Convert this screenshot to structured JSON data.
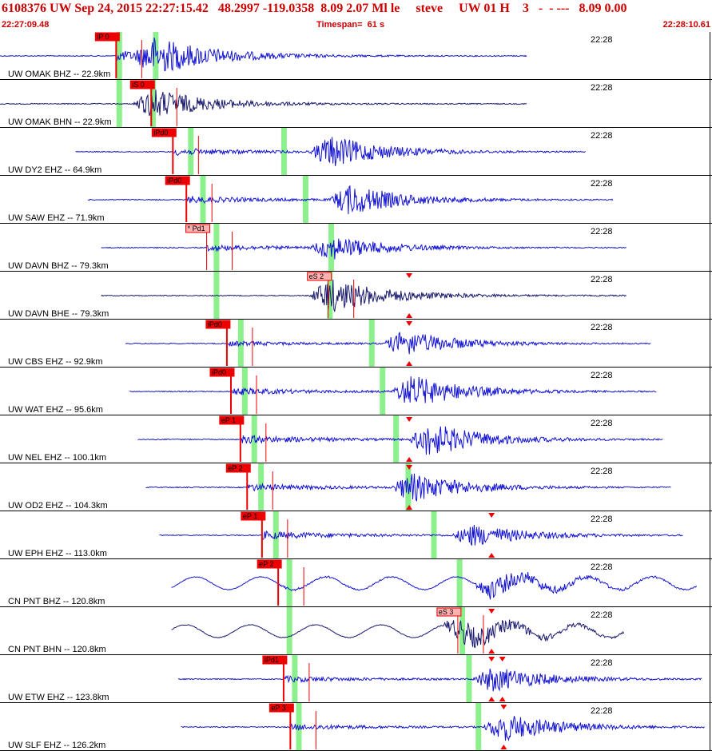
{
  "header": {
    "title": "6108376 UW Sep 24, 2015 22:27:15.42   48.2997 -119.0358  8.09 2.07 Ml le     steve     UW 01 H    3   -  - ---   8.09 0.00",
    "start_time": "22:27:09.48",
    "timespan": "Timespan=  61 s",
    "end_time": "22:28:10.61"
  },
  "colors": {
    "trace_vertical": "#1414d2",
    "trace_horizontal": "#1a1a6e",
    "pick_fill": "#ee0000",
    "pick_light": "#ffb0b0",
    "theo_bar": "#8cf08c",
    "separator": "#000000",
    "marker": "#ee0000"
  },
  "chart_data": {
    "type": "seismogram",
    "time_start": "22:27:09.48",
    "time_end": "22:28:10.61",
    "timespan_s": 61,
    "minute_mark_label": "22:28",
    "channels": [
      {
        "label": "UW OMAK BHZ -- 22.9km",
        "component": "Z",
        "pick": "iP 0",
        "pick_style": "solid",
        "t_pick": 8.6,
        "t_theo_p": 8.8,
        "t_theo_s": 11.5,
        "t_start": 0.0,
        "t_end": 39.0,
        "t_s_arr": 11.5,
        "amp_p": 0.45,
        "amp_s": 1.0,
        "markers": []
      },
      {
        "label": "UW OMAK BHN -- 22.9km",
        "component": "N",
        "pick": "iS 0",
        "pick_style": "solid",
        "t_pick": 11.2,
        "t_theo_p": 8.8,
        "t_theo_s": 11.3,
        "t_start": 0.0,
        "t_end": 39.0,
        "t_s_arr": 11.3,
        "amp_p": 0.1,
        "amp_s": 0.85,
        "markers": []
      },
      {
        "label": "UW DY2 EHZ -- 64.9km",
        "component": "Z",
        "pick": "iPd0",
        "pick_style": "solid",
        "t_pick": 12.8,
        "t_theo_p": 14.1,
        "t_theo_s": 21.0,
        "t_start": 5.6,
        "t_end": 43.4,
        "t_s_arr": 24.5,
        "amp_p": 0.3,
        "amp_s": 0.95,
        "markers": []
      },
      {
        "label": "UW SAW EHZ -- 71.9km",
        "component": "Z",
        "pick": "iPd0",
        "pick_style": "solid",
        "t_pick": 13.8,
        "t_theo_p": 15.0,
        "t_theo_s": 22.6,
        "t_start": 6.5,
        "t_end": 45.4,
        "t_s_arr": 25.9,
        "amp_p": 0.3,
        "amp_s": 0.9,
        "markers": []
      },
      {
        "label": "UW DAVN BHZ -- 79.3km",
        "component": "Z",
        "pick": "* Pd1",
        "pick_style": "light",
        "t_pick": 15.3,
        "t_theo_p": 16.0,
        "t_theo_s": 24.5,
        "t_start": 7.5,
        "t_end": 46.4,
        "t_s_arr": 24.5,
        "amp_p": 0.25,
        "amp_s": 0.7,
        "markers": []
      },
      {
        "label": "UW DAVN BHE -- 79.3km",
        "component": "E",
        "pick": "eS 2",
        "pick_style": "light",
        "t_pick": 24.3,
        "t_theo_p": 16.0,
        "t_theo_s": 24.4,
        "t_start": 7.5,
        "t_end": 46.4,
        "t_s_arr": 24.4,
        "amp_p": 0.15,
        "amp_s": 0.95,
        "markers": [
          30.3
        ]
      },
      {
        "label": "UW CBS EHZ -- 92.9km",
        "component": "Z",
        "pick": "iPd0",
        "pick_style": "solid",
        "t_pick": 16.8,
        "t_theo_p": 17.8,
        "t_theo_s": 27.5,
        "t_start": 9.3,
        "t_end": 48.2,
        "t_s_arr": 29.9,
        "amp_p": 0.2,
        "amp_s": 0.75,
        "markers": [
          30.3
        ]
      },
      {
        "label": "UW WAT EHZ -- 95.6km",
        "component": "Z",
        "pick": "iPd0",
        "pick_style": "solid",
        "t_pick": 17.1,
        "t_theo_p": 18.1,
        "t_theo_s": 28.3,
        "t_start": 9.6,
        "t_end": 48.6,
        "t_s_arr": 30.5,
        "amp_p": 0.3,
        "amp_s": 0.95,
        "markers": []
      },
      {
        "label": "UW NEL EHZ -- 100.1km",
        "component": "Z",
        "pick": "eP 1",
        "pick_style": "solid",
        "t_pick": 17.8,
        "t_theo_p": 18.8,
        "t_theo_s": 29.3,
        "t_start": 10.2,
        "t_end": 49.1,
        "t_s_arr": 31.8,
        "amp_p": 0.35,
        "amp_s": 1.0,
        "markers": [
          30.3
        ]
      },
      {
        "label": "UW OD2 EHZ -- 104.3km",
        "component": "Z",
        "pick": "eP 2",
        "pick_style": "solid",
        "t_pick": 18.3,
        "t_theo_p": 19.3,
        "t_theo_s": 30.2,
        "t_start": 10.8,
        "t_end": 49.7,
        "t_s_arr": 30.5,
        "amp_p": 0.3,
        "amp_s": 0.85,
        "markers": [
          30.3
        ]
      },
      {
        "label": "UW EPH EHZ -- 113.0km",
        "component": "Z",
        "pick": "eP 1",
        "pick_style": "solid",
        "t_pick": 19.4,
        "t_theo_p": 20.4,
        "t_theo_s": 32.1,
        "t_start": 11.8,
        "t_end": 50.6,
        "t_s_arr": 35.0,
        "amp_p": 0.35,
        "amp_s": 0.65,
        "markers": [
          36.4
        ]
      },
      {
        "label": "CN PNT BHZ -- 120.8km",
        "component": "Z",
        "pick": "eP 2",
        "pick_style": "solid",
        "t_pick": 20.6,
        "t_theo_p": 21.4,
        "t_theo_s": 34.0,
        "t_start": 12.7,
        "t_end": 51.6,
        "t_s_arr": 36.5,
        "amp_p": 0.12,
        "amp_s": 0.8,
        "markers": [],
        "long_period": true
      },
      {
        "label": "CN PNT BHN -- 120.8km",
        "component": "N",
        "pick": "eS 3",
        "pick_style": "light",
        "t_pick": 33.9,
        "t_theo_p": 21.4,
        "t_theo_s": 34.2,
        "t_start": 12.7,
        "t_end": 46.2,
        "t_s_arr": 34.2,
        "amp_p": 0.1,
        "amp_s": 0.9,
        "markers": [
          36.4
        ],
        "long_period": true
      },
      {
        "label": "UW ETW EHZ -- 123.8km",
        "component": "Z",
        "pick": "iPd1",
        "pick_style": "solid",
        "t_pick": 21.0,
        "t_theo_p": 21.8,
        "t_theo_s": 34.7,
        "t_start": 13.2,
        "t_end": 52.0,
        "t_s_arr": 36.5,
        "amp_p": 0.25,
        "amp_s": 0.75,
        "markers": [
          36.4,
          37.2
        ]
      },
      {
        "label": "UW SLF EHZ -- 126.2km",
        "component": "Z",
        "pick": "eP 3",
        "pick_style": "solid",
        "t_pick": 21.5,
        "t_theo_p": 22.1,
        "t_theo_s": 35.4,
        "t_start": 13.4,
        "t_end": 52.2,
        "t_s_arr": 37.3,
        "amp_p": 0.25,
        "amp_s": 0.85,
        "markers": [
          37.3
        ]
      }
    ]
  }
}
